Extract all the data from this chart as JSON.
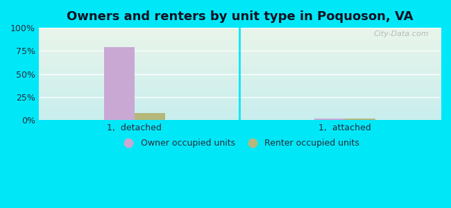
{
  "title": "Owners and renters by unit type in Poquoson, VA",
  "categories": [
    "1,  detached",
    "1,  attached"
  ],
  "owner_values": [
    79,
    1.5
  ],
  "renter_values": [
    8,
    1.5
  ],
  "owner_color": "#c9a8d4",
  "renter_color": "#b5b87a",
  "ylim": [
    0,
    100
  ],
  "yticks": [
    0,
    25,
    50,
    75,
    100
  ],
  "ytick_labels": [
    "0%",
    "25%",
    "50%",
    "75%",
    "100%"
  ],
  "bg_color_top": "#eaf5ea",
  "bg_color_bottom": "#c8eeee",
  "outer_bg": "#00e8f8",
  "bar_width": 0.32,
  "group_positions": [
    1.0,
    3.2
  ],
  "xlim": [
    0.0,
    4.2
  ],
  "watermark": "City-Data.com",
  "legend_labels": [
    "Owner occupied units",
    "Renter occupied units"
  ],
  "title_fontsize": 13,
  "tick_fontsize": 9
}
